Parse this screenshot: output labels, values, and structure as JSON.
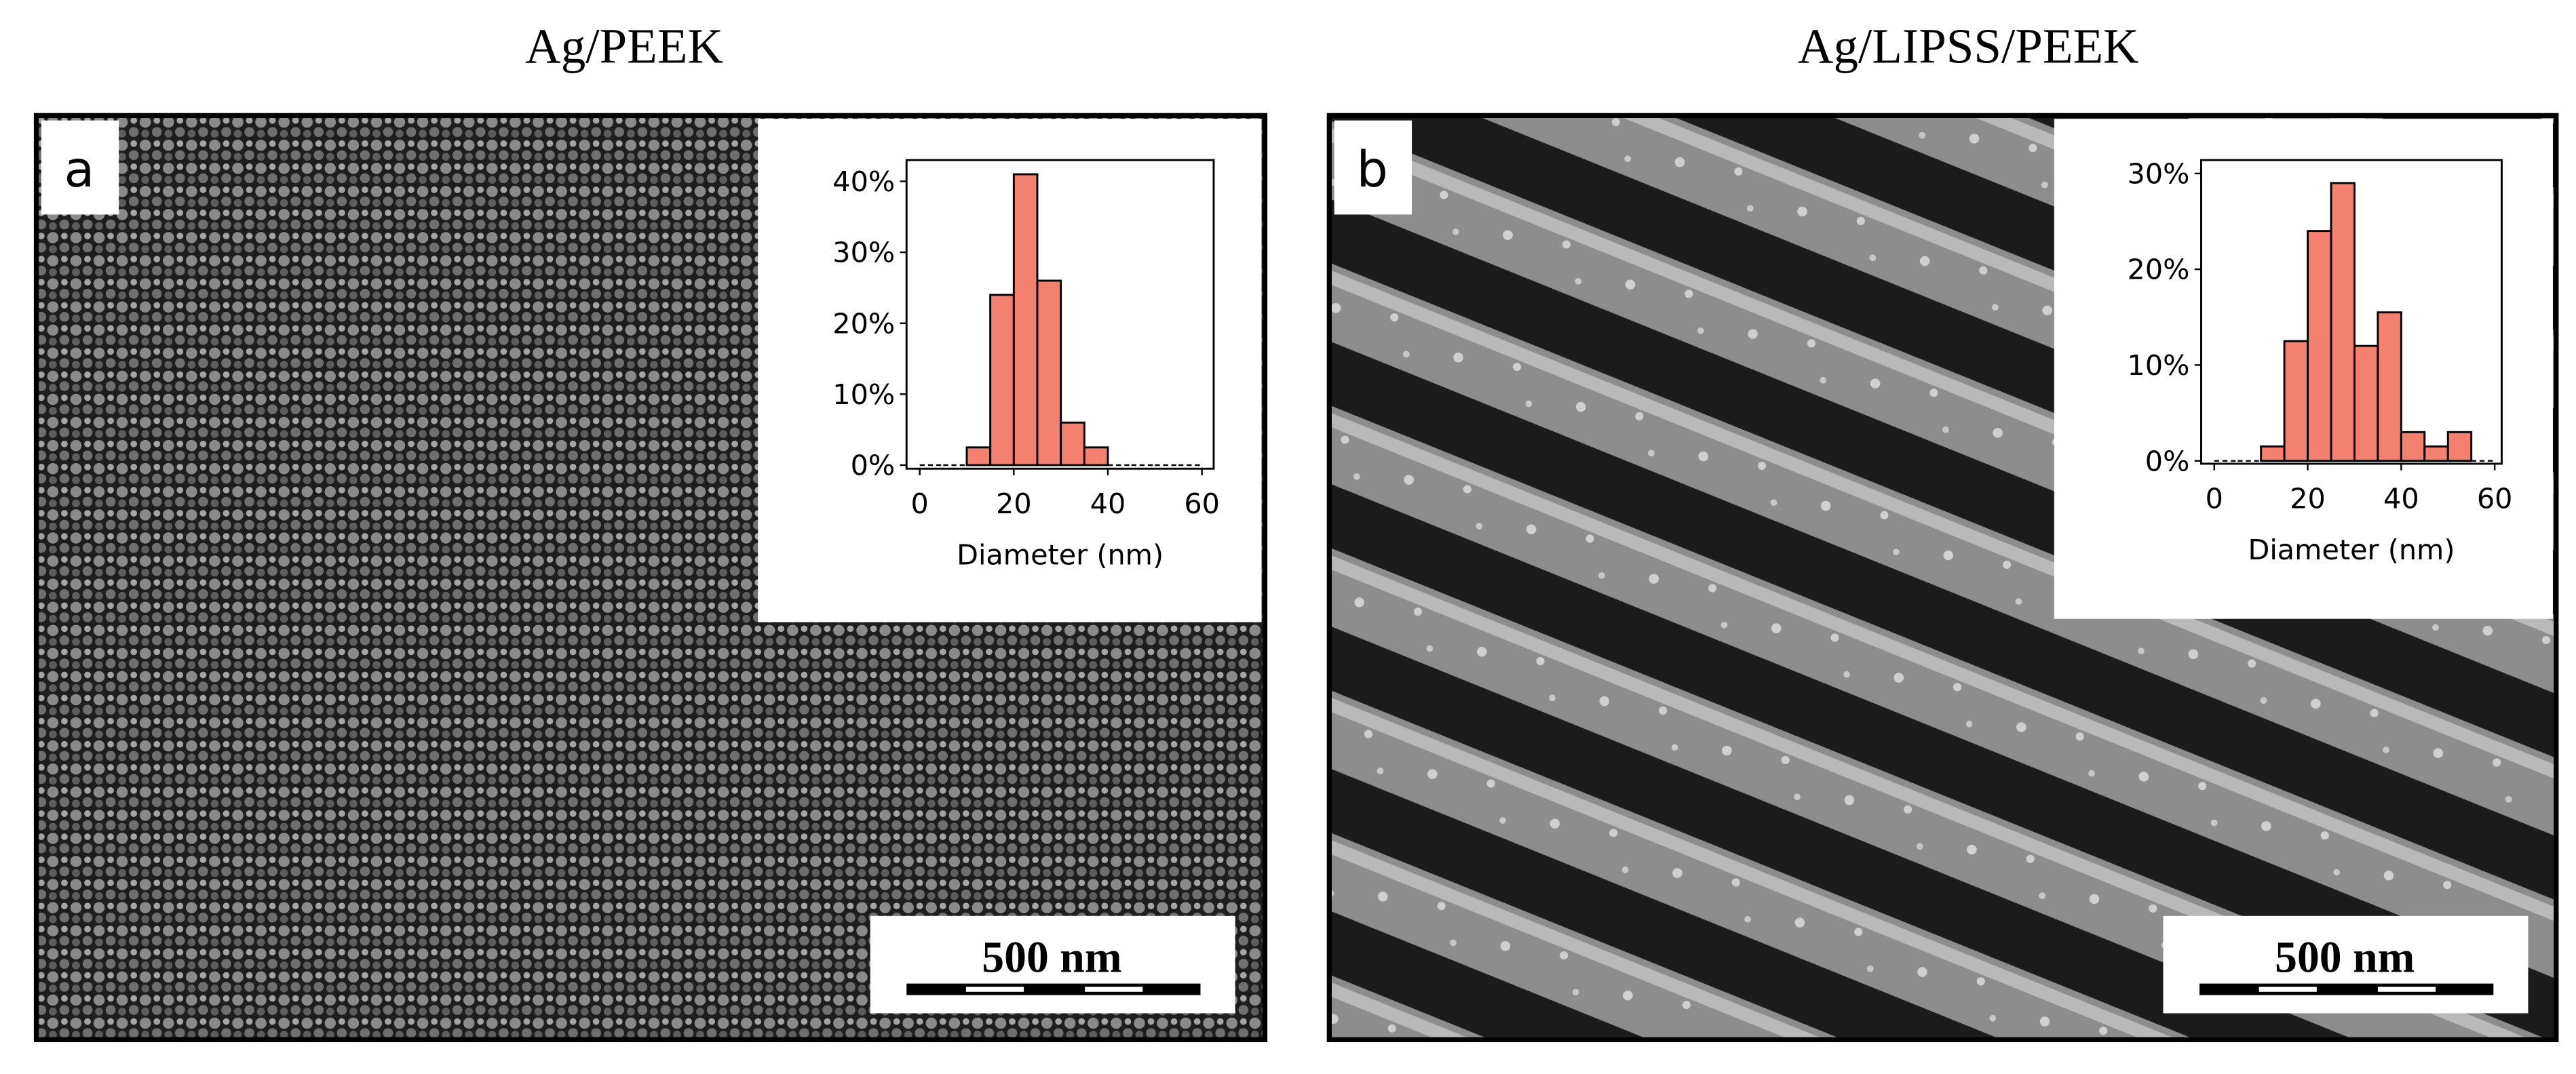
{
  "chart_data": [
    {
      "type": "histogram",
      "title": "Ag/PEEK",
      "annotations": [
        "a",
        "500 nm"
      ],
      "x_label": "Diameter (nm)",
      "bins": [
        0,
        5,
        10,
        15,
        20,
        25,
        30,
        35,
        40,
        45,
        50,
        55,
        60
      ],
      "values": [
        0,
        0,
        2.5,
        24,
        41,
        26,
        6,
        2.5,
        0,
        0,
        0,
        0
      ],
      "color": "#f4806f",
      "xlim": [
        -2.8,
        62.5
      ],
      "xticks": [
        0,
        20,
        40,
        60
      ],
      "ylim": [
        -0.5,
        43
      ],
      "yticks": [
        {
          "value": 0,
          "label": "0%"
        },
        {
          "value": 10,
          "label": "10%"
        },
        {
          "value": 20,
          "label": "20%"
        },
        {
          "value": 30,
          "label": "30%"
        },
        {
          "value": 40,
          "label": "40%"
        }
      ]
    },
    {
      "type": "histogram",
      "title": "Ag/LIPSS/PEEK",
      "annotations": [
        "b",
        "500 nm"
      ],
      "x_label": "Diameter (nm)",
      "bins": [
        0,
        5,
        10,
        15,
        20,
        25,
        30,
        35,
        40,
        45,
        50,
        55,
        60
      ],
      "values": [
        0,
        0,
        1.5,
        12.5,
        24,
        29,
        12,
        15.5,
        3,
        1.5,
        3,
        0
      ],
      "color": "#f4806f",
      "xlim": [
        -2.8,
        61.5
      ],
      "xticks": [
        0,
        20,
        40,
        60
      ],
      "ylim": [
        -0.3,
        31.4
      ],
      "yticks": [
        {
          "value": 0,
          "label": "0%"
        },
        {
          "value": 10,
          "label": "10%"
        },
        {
          "value": 20,
          "label": "20%"
        },
        {
          "value": 30,
          "label": "30%"
        }
      ]
    }
  ]
}
